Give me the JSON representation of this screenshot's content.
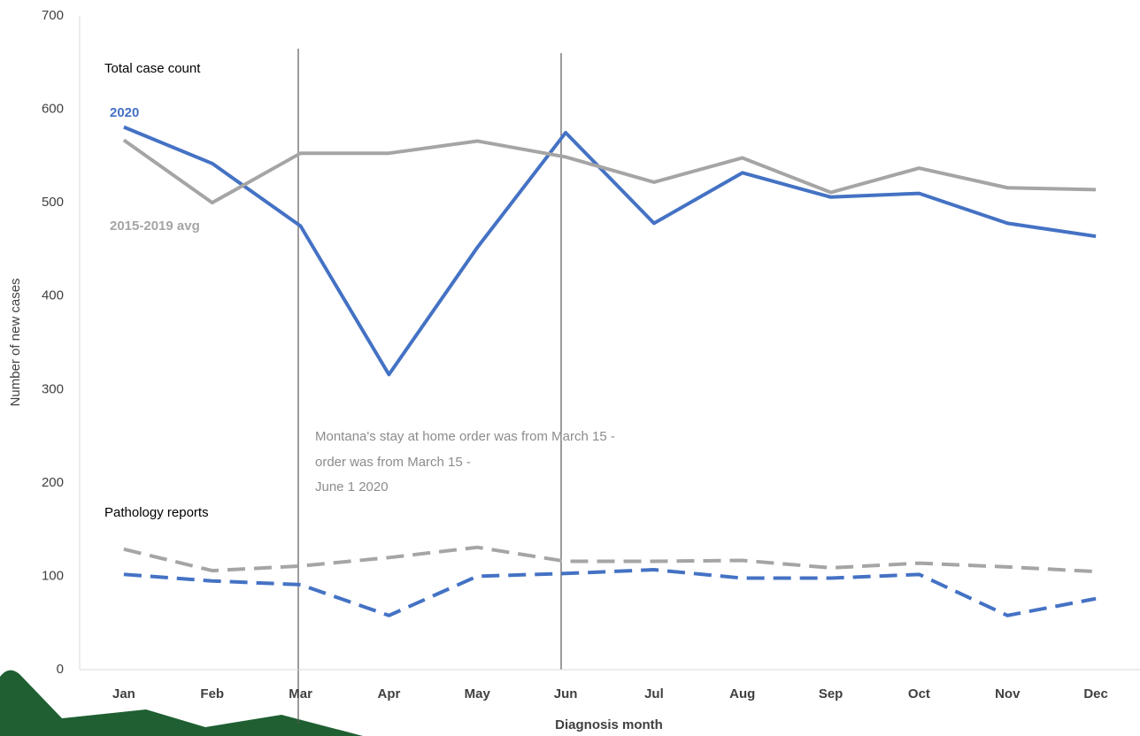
{
  "chart_data": {
    "type": "line",
    "annotations": {
      "section_total": "Total case count",
      "section_pathology": "Pathology reports",
      "note": [
        "Montana's stay at home order was from March 15 -",
        "order was  from March 15 -",
        "June 1 2020"
      ]
    },
    "x_label": "Diagnosis month",
    "y_label": "Number of new cases",
    "categories": [
      "Jan",
      "Feb",
      "Mar",
      "Apr",
      "May",
      "Jun",
      "Jul",
      "Aug",
      "Sep",
      "Oct",
      "Nov",
      "Dec"
    ],
    "series": [
      {
        "name": "2020",
        "color": "#4472c4",
        "dashed": false,
        "values": [
          581,
          542,
          475,
          316,
          452,
          575,
          478,
          532,
          506,
          510,
          478,
          464
        ]
      },
      {
        "name": "2015-2019 avg",
        "color": "#a5a5a5",
        "dashed": false,
        "values": [
          567,
          500,
          553,
          553,
          566,
          549,
          522,
          548,
          511,
          537,
          516,
          514
        ]
      },
      {
        "color": "#a5a5a5",
        "dashed": true,
        "values": [
          129,
          106,
          111,
          120,
          131,
          116,
          116,
          117,
          109,
          114,
          110,
          105
        ]
      },
      {
        "color": "#4472c4",
        "dashed": true,
        "values": [
          102,
          95,
          91,
          58,
          100,
          103,
          107,
          98,
          98,
          102,
          58,
          76
        ]
      }
    ],
    "ylim": [
      0,
      700
    ],
    "yticks": [
      0,
      100,
      200,
      300,
      400,
      500,
      600,
      700
    ],
    "grid": false
  }
}
